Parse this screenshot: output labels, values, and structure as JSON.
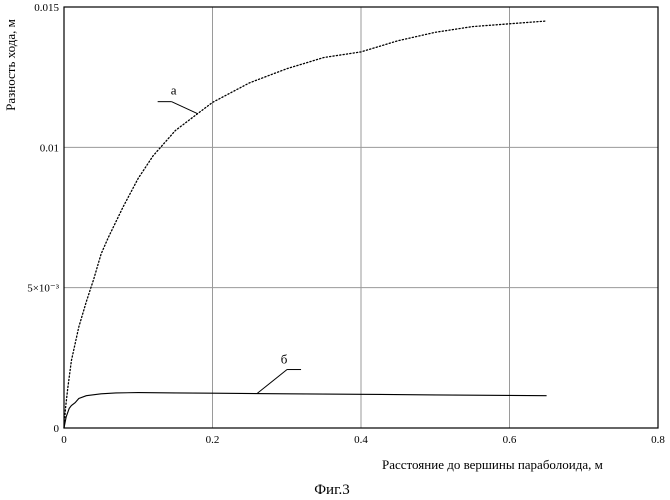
{
  "chart_data": {
    "type": "line",
    "xlabel": "Расстояние до вершины параболоида, м",
    "ylabel": "Разность хода, м",
    "caption": "Фиг.3",
    "xlim": [
      0,
      0.8
    ],
    "ylim": [
      0,
      0.015
    ],
    "x_ticks": [
      {
        "value": 0,
        "label": "0"
      },
      {
        "value": 0.2,
        "label": "0.2"
      },
      {
        "value": 0.4,
        "label": "0.4"
      },
      {
        "value": 0.6,
        "label": "0.6"
      },
      {
        "value": 0.8,
        "label": "0.8"
      }
    ],
    "y_ticks": [
      {
        "value": 0,
        "label": "0"
      },
      {
        "value": 0.005,
        "label": "5×10⁻³"
      },
      {
        "value": 0.01,
        "label": "0.01"
      },
      {
        "value": 0.015,
        "label": "0.015"
      }
    ],
    "grid": true,
    "series": [
      {
        "name": "а",
        "style": "dotted",
        "x": [
          0.0,
          0.002,
          0.005,
          0.01,
          0.02,
          0.03,
          0.04,
          0.05,
          0.06,
          0.08,
          0.1,
          0.12,
          0.15,
          0.2,
          0.25,
          0.3,
          0.35,
          0.4,
          0.45,
          0.5,
          0.55,
          0.6,
          0.65
        ],
        "y": [
          0.0,
          0.0007,
          0.0014,
          0.0024,
          0.0036,
          0.0045,
          0.0053,
          0.0062,
          0.0068,
          0.0079,
          0.0089,
          0.0097,
          0.0106,
          0.0116,
          0.0123,
          0.0128,
          0.0132,
          0.0134,
          0.0138,
          0.0141,
          0.0143,
          0.0144,
          0.0145
        ]
      },
      {
        "name": "б",
        "style": "solid",
        "x": [
          0.0,
          0.003,
          0.007,
          0.01,
          0.015,
          0.02,
          0.03,
          0.05,
          0.07,
          0.1,
          0.15,
          0.2,
          0.3,
          0.4,
          0.5,
          0.6,
          0.65
        ],
        "y": [
          0.0,
          0.0004,
          0.0007,
          0.0008,
          0.0009,
          0.00105,
          0.00115,
          0.00122,
          0.00125,
          0.00126,
          0.00125,
          0.00124,
          0.00122,
          0.0012,
          0.00118,
          0.00116,
          0.00115
        ]
      }
    ],
    "annotations": [
      {
        "text": "а",
        "series": "а",
        "at_x": 0.18
      },
      {
        "text": "б",
        "series": "б",
        "at_x": 0.26
      }
    ]
  }
}
